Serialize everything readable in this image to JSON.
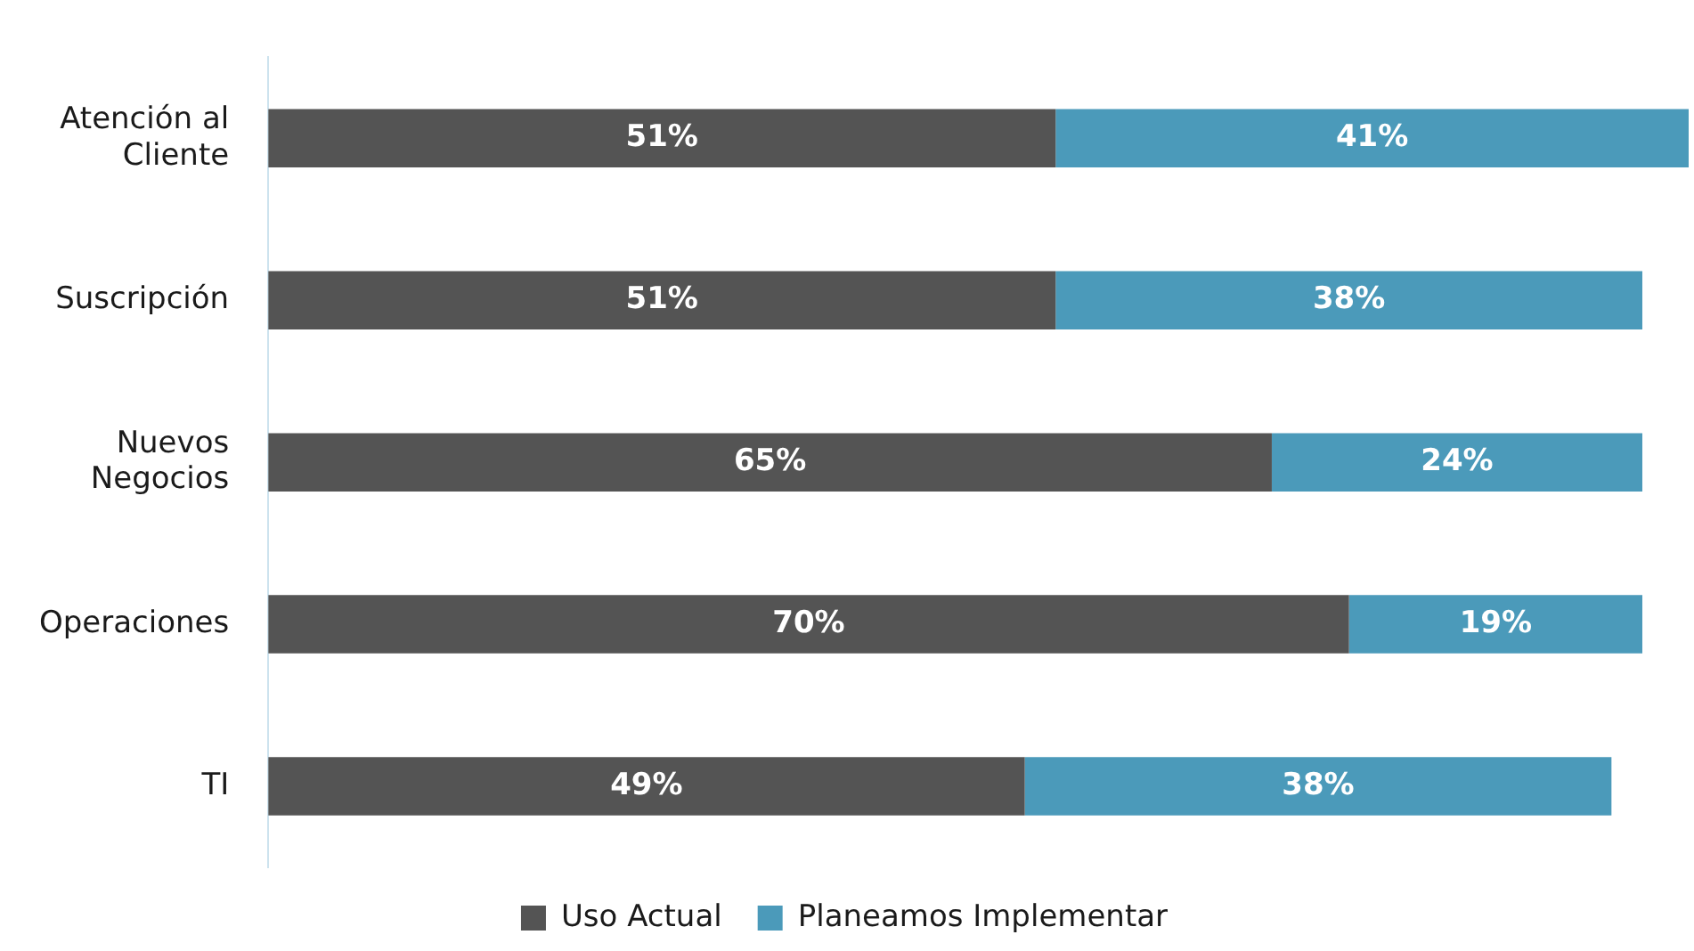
{
  "chart_data": {
    "type": "bar",
    "orientation": "horizontal",
    "stacked": true,
    "xlim": [
      0,
      92
    ],
    "categories": [
      "Atención al Cliente",
      "Suscripción",
      "Nuevos Negocios",
      "Operaciones",
      "TI"
    ],
    "series": [
      {
        "name": "Uso Actual",
        "color": "#545454",
        "values": [
          51,
          51,
          65,
          70,
          49
        ],
        "value_labels": [
          "51%",
          "51%",
          "65%",
          "70%",
          "49%"
        ]
      },
      {
        "name": "Planeamos Implementar",
        "color": "#4b9aba",
        "values": [
          41,
          38,
          24,
          19,
          38
        ],
        "value_labels": [
          "41%",
          "38%",
          "24%",
          "19%",
          "38%"
        ]
      }
    ],
    "legend": "bottom",
    "tick_labels": "y"
  }
}
